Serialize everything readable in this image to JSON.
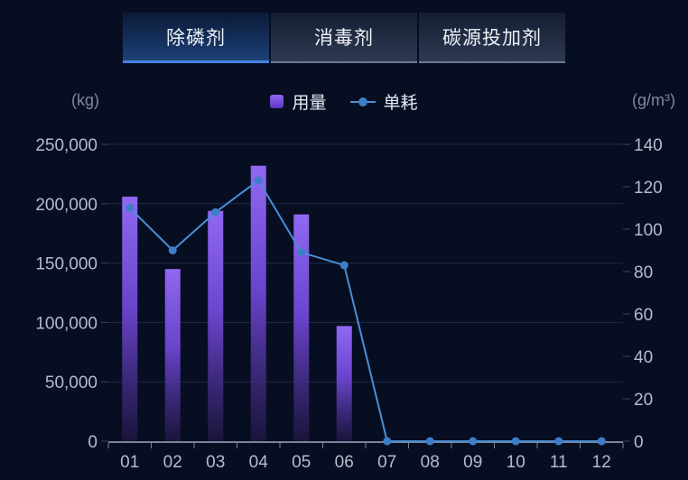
{
  "tabs": [
    {
      "label": "除磷剂",
      "active": true
    },
    {
      "label": "消毒剂",
      "active": false
    },
    {
      "label": "碳源投加剂",
      "active": false
    }
  ],
  "chart_data": {
    "type": "combo",
    "categories": [
      "01",
      "02",
      "03",
      "04",
      "05",
      "06",
      "07",
      "08",
      "09",
      "10",
      "11",
      "12"
    ],
    "series": [
      {
        "name": "用量",
        "type": "bar",
        "axis": "left",
        "values": [
          206000,
          145000,
          194000,
          232000,
          191000,
          97000,
          0,
          0,
          0,
          0,
          0,
          0
        ]
      },
      {
        "name": "单耗",
        "type": "line",
        "axis": "right",
        "values": [
          110,
          90,
          108,
          123,
          89,
          83,
          0,
          0,
          0,
          0,
          0,
          0
        ]
      }
    ],
    "left_axis": {
      "unit": "(kg)",
      "min": 0,
      "max": 250000,
      "tick_interval": 50000
    },
    "right_axis": {
      "unit": "(g/m³)",
      "min": 0,
      "max": 140,
      "tick_interval": 20
    },
    "grid": true,
    "legend_position": "top-center"
  },
  "colors": {
    "background": "#070e22",
    "grid_line": "#1f2a48",
    "axis_line": "#7b8498",
    "tick_label": "#b4bcce",
    "unit_label": "#7d87a0",
    "bar_top": "#9068f2",
    "bar_mid": "#6a44cc",
    "bar_bottom": "#1d1640",
    "line": "#4b8ed6",
    "dot": "#3e7ec8",
    "tab_active_border": "#4482e2"
  }
}
